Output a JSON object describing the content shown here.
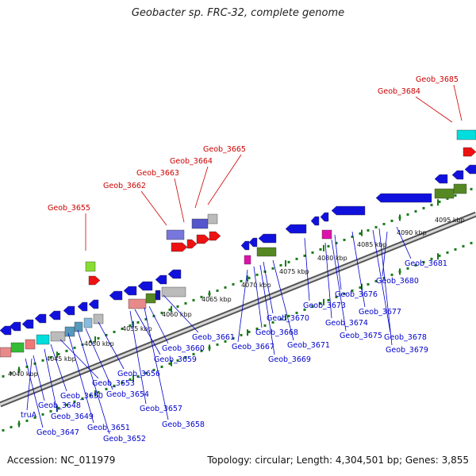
{
  "title": "Geobacter sp. FRC-32, complete genome",
  "footer": {
    "accession": "Accession: NC_011979",
    "topology": "Topology: circular; Length: 4,304,501 bp; Genes: 3,855"
  },
  "colors": {
    "upper_label": "#cc0000",
    "lower_label": "#0000cc",
    "dots": "#1a7a1a",
    "backbone": "#888888"
  },
  "scale_ticks": [
    "4040 kbp",
    "4045 kbp",
    "4050 kbp",
    "4055 kbp",
    "4060 kbp",
    "4065 kbp",
    "4070 kbp",
    "4075 kbp",
    "4080 kbp",
    "4085 kbp",
    "4090 kbp",
    "4095 kbp"
  ],
  "upper_genes": [
    "Geob_3655",
    "Geob_3662",
    "Geob_3663",
    "Geob_3664",
    "Geob_3665",
    "Geob_3684",
    "Geob_3685"
  ],
  "lower_genes": [
    "truA",
    "Geob_3647",
    "Geob_3648",
    "Geob_3649",
    "Geob_3650",
    "Geob_3651",
    "Geob_3652",
    "Geob_3653",
    "Geob_3654",
    "Geob_3656",
    "Geob_3657",
    "Geob_3658",
    "Geob_3659",
    "Geob_3660",
    "Geob_3661",
    "Geob_3667",
    "Geob_3668",
    "Geob_3669",
    "Geob_3670",
    "Geob_3671",
    "Geob_3673",
    "Geob_3674",
    "Geob_3675",
    "Geob_3676",
    "Geob_3677",
    "Geob_3678",
    "Geob_3679",
    "Geob_3680",
    "Geob_3681"
  ]
}
